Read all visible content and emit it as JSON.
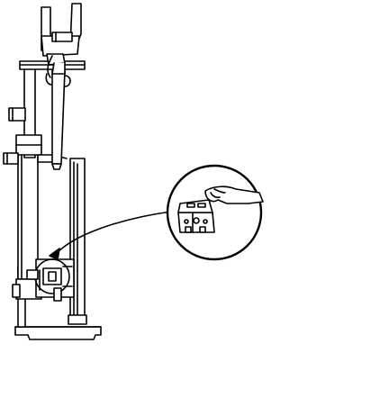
{
  "diagram": {
    "line_color": "#000000",
    "background_color": "#ffffff",
    "parts": [
      {
        "name": "upper-grip-fixture-icon",
        "kind": "line-drawing"
      },
      {
        "name": "test-stand-frame-icon",
        "kind": "line-drawing"
      },
      {
        "name": "load-cell-icon",
        "kind": "line-drawing"
      },
      {
        "name": "lower-fixture-icon",
        "kind": "line-drawing"
      },
      {
        "name": "side-guard-frame-icon",
        "kind": "line-drawing"
      },
      {
        "name": "callout-circle",
        "kind": "detail-view"
      },
      {
        "name": "hand-holding-fixture-icon",
        "kind": "line-drawing"
      },
      {
        "name": "callout-arrow",
        "kind": "pointer"
      }
    ]
  }
}
